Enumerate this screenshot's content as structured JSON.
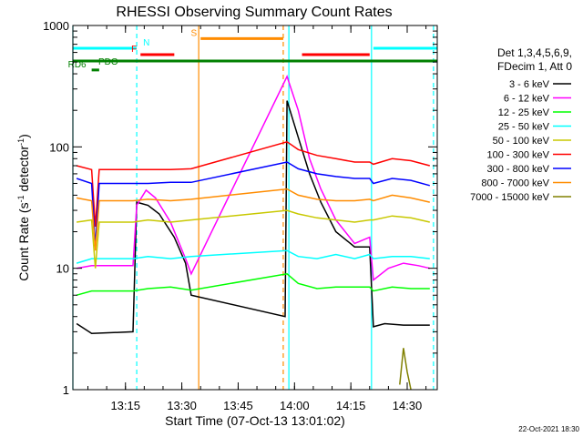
{
  "chart_data": {
    "type": "line",
    "title": "RHESSI Observing Summary Count Rates",
    "xlabel": "Start Time (07-Oct-13 13:01:02)",
    "ylabel": "Count Rate (s",
    "ylabel_sup": "-1",
    "ylabel_tail": " detector",
    "ylabel_sup2": "-1",
    "ylabel_end": ")",
    "y_scale": "log",
    "ylim": [
      1,
      1000
    ],
    "xlim_minutes": [
      0,
      97
    ],
    "x_ticks": [
      {
        "label": "13:15",
        "minute": 14
      },
      {
        "label": "13:30",
        "minute": 29
      },
      {
        "label": "13:45",
        "minute": 44
      },
      {
        "label": "14:00",
        "minute": 59
      },
      {
        "label": "14:15",
        "minute": 74
      },
      {
        "label": "14:30",
        "minute": 89
      }
    ],
    "y_ticks": [
      {
        "label": "1",
        "value": 1
      },
      {
        "label": "10",
        "value": 10
      },
      {
        "label": "100",
        "value": 100
      },
      {
        "label": "1000",
        "value": 1000
      }
    ],
    "info_lines": [
      "Det 1,3,4,5,6,9,",
      "FDecim 1, Att 0"
    ],
    "series": [
      {
        "name": "3 - 6 keV",
        "color": "#000000",
        "points": [
          [
            1,
            3.5
          ],
          [
            5,
            2.9
          ],
          [
            16,
            3
          ],
          [
            17,
            35
          ],
          [
            20,
            33
          ],
          [
            23,
            28
          ],
          [
            27,
            18
          ],
          [
            30,
            11
          ],
          [
            31.5,
            6
          ],
          [
            56.5,
            4
          ],
          [
            57,
            240
          ],
          [
            60,
            120
          ],
          [
            63,
            60
          ],
          [
            66,
            35
          ],
          [
            70,
            20
          ],
          [
            75,
            15
          ],
          [
            79,
            15
          ],
          [
            80,
            3.3
          ],
          [
            83,
            3.5
          ],
          [
            88,
            3.4
          ],
          [
            95,
            3.4
          ]
        ]
      },
      {
        "name": "6 - 12 keV",
        "color": "#ff00ff",
        "points": [
          [
            1,
            10
          ],
          [
            5,
            10.5
          ],
          [
            16,
            10.5
          ],
          [
            17,
            33
          ],
          [
            19.5,
            44
          ],
          [
            22,
            38
          ],
          [
            26,
            24
          ],
          [
            30,
            12
          ],
          [
            31.5,
            9
          ],
          [
            57,
            380
          ],
          [
            60,
            200
          ],
          [
            63,
            80
          ],
          [
            66,
            45
          ],
          [
            70,
            25
          ],
          [
            75,
            16
          ],
          [
            79,
            18
          ],
          [
            80,
            8
          ],
          [
            84,
            10
          ],
          [
            88,
            11
          ],
          [
            92,
            10.5
          ],
          [
            95,
            10
          ]
        ]
      },
      {
        "name": "12 - 25 keV",
        "color": "#00ff00",
        "points": [
          [
            1,
            6
          ],
          [
            5,
            6.5
          ],
          [
            16,
            6.5
          ],
          [
            20,
            6.8
          ],
          [
            26,
            7
          ],
          [
            31.5,
            6.6
          ],
          [
            57,
            9
          ],
          [
            60,
            7.5
          ],
          [
            65,
            6.8
          ],
          [
            70,
            7
          ],
          [
            75,
            7
          ],
          [
            79,
            7
          ],
          [
            80,
            6.5
          ],
          [
            85,
            7
          ],
          [
            90,
            6.8
          ],
          [
            95,
            6.8
          ]
        ]
      },
      {
        "name": "25 - 50 keV",
        "color": "#00ffff",
        "points": [
          [
            1,
            11
          ],
          [
            5,
            12
          ],
          [
            16,
            12
          ],
          [
            20,
            12.5
          ],
          [
            26,
            12
          ],
          [
            31.5,
            12.5
          ],
          [
            57,
            14
          ],
          [
            60,
            12.5
          ],
          [
            65,
            12
          ],
          [
            70,
            13
          ],
          [
            75,
            12
          ],
          [
            79,
            13
          ],
          [
            80,
            12
          ],
          [
            85,
            12.5
          ],
          [
            90,
            12.5
          ],
          [
            95,
            12
          ]
        ]
      },
      {
        "name": "50 - 100 keV",
        "color": "#c8c800",
        "points": [
          [
            1,
            24
          ],
          [
            5,
            25
          ],
          [
            6,
            10
          ],
          [
            7,
            24
          ],
          [
            16,
            24
          ],
          [
            20,
            25
          ],
          [
            26,
            24
          ],
          [
            31.5,
            25
          ],
          [
            57,
            30
          ],
          [
            60,
            28
          ],
          [
            65,
            26
          ],
          [
            70,
            25
          ],
          [
            75,
            24
          ],
          [
            79,
            25
          ],
          [
            80,
            25
          ],
          [
            85,
            27
          ],
          [
            90,
            26
          ],
          [
            95,
            24
          ]
        ]
      },
      {
        "name": "100 - 300 keV",
        "color": "#ff0000",
        "points": [
          [
            1,
            70
          ],
          [
            5,
            65
          ],
          [
            6,
            22
          ],
          [
            7,
            65
          ],
          [
            16,
            65
          ],
          [
            20,
            65
          ],
          [
            26,
            65
          ],
          [
            31.5,
            66
          ],
          [
            57,
            110
          ],
          [
            60,
            95
          ],
          [
            65,
            85
          ],
          [
            70,
            80
          ],
          [
            75,
            75
          ],
          [
            79,
            75
          ],
          [
            80,
            72
          ],
          [
            85,
            80
          ],
          [
            90,
            77
          ],
          [
            95,
            70
          ]
        ]
      },
      {
        "name": "300 - 800 keV",
        "color": "#0000ff",
        "points": [
          [
            1,
            55
          ],
          [
            5,
            50
          ],
          [
            6,
            15
          ],
          [
            7,
            50
          ],
          [
            16,
            50
          ],
          [
            20,
            50
          ],
          [
            26,
            51
          ],
          [
            31.5,
            51
          ],
          [
            57,
            75
          ],
          [
            60,
            66
          ],
          [
            65,
            60
          ],
          [
            70,
            57
          ],
          [
            75,
            55
          ],
          [
            79,
            55
          ],
          [
            80,
            50
          ],
          [
            85,
            55
          ],
          [
            90,
            53
          ],
          [
            95,
            48
          ]
        ]
      },
      {
        "name": "800 - 7000 keV",
        "color": "#ff8c00",
        "points": [
          [
            1,
            38
          ],
          [
            5,
            36
          ],
          [
            6,
            14
          ],
          [
            7,
            36
          ],
          [
            16,
            36
          ],
          [
            20,
            37
          ],
          [
            26,
            36
          ],
          [
            31.5,
            37
          ],
          [
            57,
            45
          ],
          [
            60,
            40
          ],
          [
            65,
            37
          ],
          [
            70,
            36
          ],
          [
            75,
            36
          ],
          [
            79,
            37
          ],
          [
            80,
            36
          ],
          [
            85,
            40
          ],
          [
            90,
            38
          ],
          [
            95,
            35
          ]
        ]
      },
      {
        "name": "7000 - 15000 keV",
        "color": "#808000",
        "points": [
          [
            87,
            1.1
          ],
          [
            88,
            2.2
          ],
          [
            89,
            1.4
          ],
          [
            90,
            1
          ]
        ]
      }
    ],
    "state_bars": [
      {
        "label": "N",
        "color": "#00ffff",
        "segments": [
          [
            0,
            17
          ],
          [
            80,
            97
          ]
        ],
        "value": 650
      },
      {
        "label": "F",
        "color": "#ff0000",
        "segments": [
          [
            18,
            27
          ],
          [
            61,
            79
          ]
        ],
        "value": 575
      },
      {
        "label": "S",
        "color": "#ff8c00",
        "segments": [
          [
            34,
            56
          ]
        ],
        "value": 780
      },
      {
        "label": "PDO",
        "color": "#008000",
        "segments": [
          [
            0,
            97
          ]
        ],
        "value": 510
      },
      {
        "label": "RD6",
        "color": "#008000",
        "segments": [
          [
            5,
            7
          ]
        ],
        "value": 430
      }
    ],
    "vertical_lines": [
      {
        "minute": 0,
        "color": "#00ffff",
        "style": "solid"
      },
      {
        "minute": 17,
        "color": "#00ffff",
        "style": "dashed"
      },
      {
        "minute": 33.5,
        "color": "#ff8c00",
        "style": "solid"
      },
      {
        "minute": 56,
        "color": "#ff8c00",
        "style": "dashed"
      },
      {
        "minute": 57.5,
        "color": "#00ffff",
        "style": "solid"
      },
      {
        "minute": 79.5,
        "color": "#00ffff",
        "style": "solid"
      },
      {
        "minute": 96,
        "color": "#00ffff",
        "style": "dashed"
      }
    ],
    "footer_date": "22-Oct-2021 18:30"
  }
}
